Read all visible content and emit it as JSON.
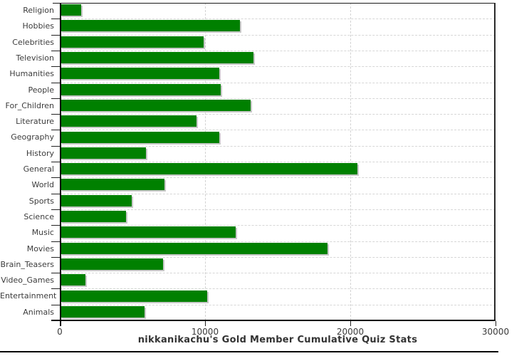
{
  "chart_data": {
    "type": "bar",
    "orientation": "horizontal",
    "title": "nikkanikachu's Gold Member Cumulative Quiz Stats",
    "categories": [
      "Religion",
      "Hobbies",
      "Celebrities",
      "Television",
      "Humanities",
      "People",
      "For_Children",
      "Literature",
      "Geography",
      "History",
      "General",
      "World",
      "Sports",
      "Science",
      "Music",
      "Movies",
      "Brain_Teasers",
      "Video_Games",
      "Entertainment",
      "Animals"
    ],
    "values": [
      1400,
      12350,
      9850,
      13300,
      10950,
      11050,
      13100,
      9350,
      10950,
      5900,
      20450,
      7150,
      4900,
      4500,
      12050,
      18400,
      7050,
      1700,
      10100,
      5800
    ],
    "xlim": [
      0,
      30000
    ],
    "x_ticks": [
      0,
      10000,
      20000,
      30000
    ],
    "x_tick_labels": [
      "0",
      "10000",
      "20000",
      "30000"
    ],
    "grid": "dashed",
    "legend": "none",
    "colors": {
      "bar_fill": "#008000",
      "bar_shadow": "#c8c8c8",
      "axis": "#000000",
      "gridline": "#d4d4d4",
      "label_text": "#3c3c3c",
      "title_text": "#333333",
      "background": "#ffffff"
    }
  }
}
